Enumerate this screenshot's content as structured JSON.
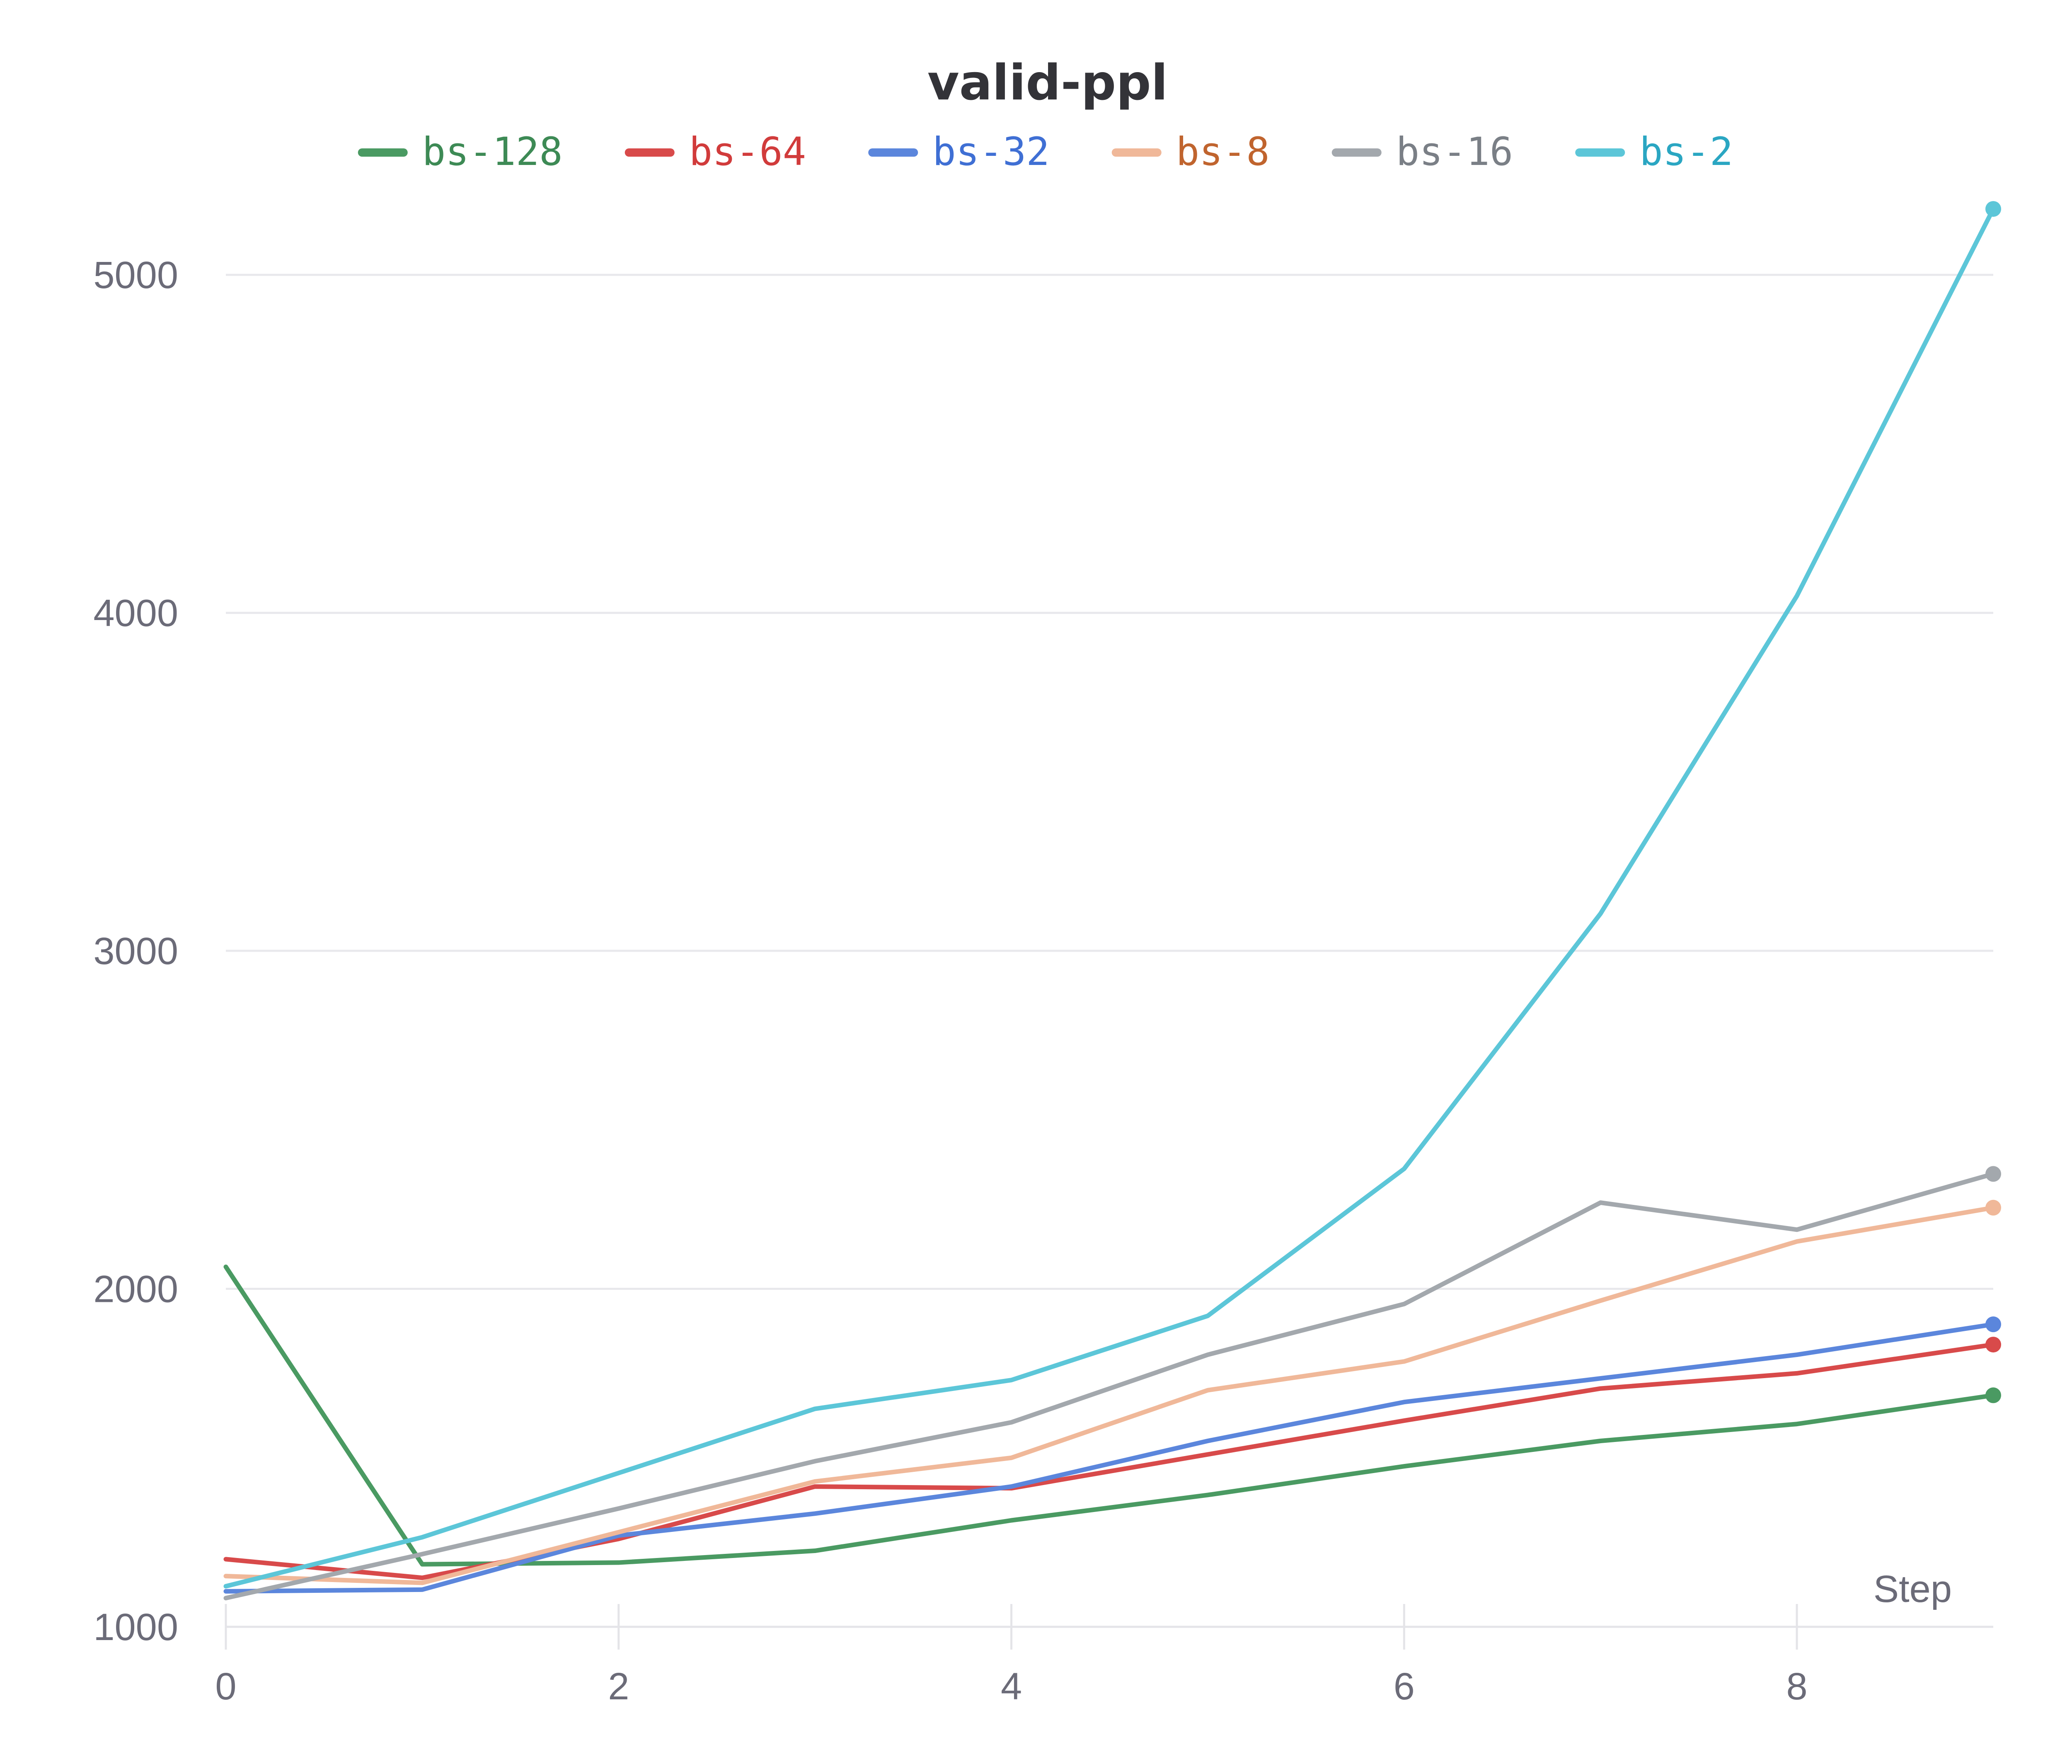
{
  "chart_data": {
    "type": "line",
    "title": "valid-ppl",
    "xlabel": "Step",
    "ylabel": "",
    "x": [
      0,
      1,
      2,
      3,
      4,
      5,
      6,
      7,
      8,
      9
    ],
    "xlim": [
      0,
      9
    ],
    "ylim": [
      1000,
      5200
    ],
    "x_ticks": [
      0,
      2,
      4,
      6,
      8
    ],
    "y_ticks": [
      1000,
      2000,
      3000,
      4000,
      5000
    ],
    "grid": "horizontal",
    "legend_position": "top",
    "series": [
      {
        "name": "bs-128",
        "color": "#4a9a62",
        "label_color": "#3d8a55",
        "values": [
          2065,
          1185,
          1190,
          1225,
          1315,
          1390,
          1475,
          1550,
          1600,
          1685
        ]
      },
      {
        "name": "bs-64",
        "color": "#d84a4a",
        "label_color": "#d13b3b",
        "values": [
          1200,
          1145,
          1260,
          1415,
          1410,
          1510,
          1610,
          1705,
          1750,
          1835
        ]
      },
      {
        "name": "bs-32",
        "color": "#5b86dc",
        "label_color": "#3f6fd4",
        "values": [
          1105,
          1110,
          1270,
          1335,
          1415,
          1550,
          1665,
          1735,
          1805,
          1895
        ]
      },
      {
        "name": "bs-8",
        "color": "#f0b899",
        "label_color": "#c0642e",
        "values": [
          1150,
          1130,
          1280,
          1430,
          1500,
          1700,
          1785,
          1965,
          2140,
          2240
        ]
      },
      {
        "name": "bs-16",
        "color": "#a3a8ad",
        "label_color": "#7a7f86",
        "values": [
          1085,
          1215,
          1350,
          1490,
          1605,
          1805,
          1955,
          2255,
          2175,
          2340
        ]
      },
      {
        "name": "bs-2",
        "color": "#5cc6d8",
        "label_color": "#2aa6c2",
        "values": [
          1120,
          1265,
          1455,
          1645,
          1730,
          1920,
          2355,
          3110,
          4050,
          5195
        ]
      }
    ]
  }
}
